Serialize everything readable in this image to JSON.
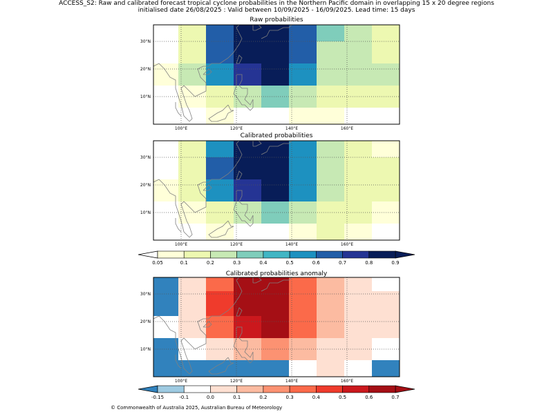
{
  "header": {
    "title_line1": "ACCESS_S2: Raw and calibrated forecast tropical cyclone probabilities in the Northern Pacific domain in overlapping 15 x 20 degree regions",
    "title_line2": "initialised date 26/08/2025 :  Valid between 10/09/2025 - 16/09/2025. Lead time: 15 days"
  },
  "footer": {
    "copyright": "© Commonwealth of Australia 2025, Australian Bureau of Meteorology"
  },
  "axes": {
    "lon_labels": [
      "100°E",
      "120°E",
      "140°E",
      "160°E"
    ],
    "lon_values": [
      100,
      120,
      140,
      160
    ],
    "lat_labels": [
      "30°N",
      "20°N",
      "10°N"
    ],
    "lat_values": [
      30,
      20,
      10
    ],
    "lon_range": [
      90,
      179
    ],
    "lat_range": [
      0,
      36
    ],
    "gridlines": "dotted",
    "coastlines": true
  },
  "colors": {
    "prob_colors": [
      "#ffffd9",
      "#edf8b1",
      "#c7e9b4",
      "#7fcdbb",
      "#41b6c4",
      "#1d91c0",
      "#225ea8",
      "#253494",
      "#081d58"
    ],
    "anom_colors": [
      "#3182bd",
      "#9ecae1",
      "#ffffff",
      "#fee0d2",
      "#fcbba1",
      "#fc9272",
      "#fb6a4a",
      "#ef3b2c",
      "#cb181d",
      "#a50f15"
    ],
    "coastline": "#808080"
  },
  "chart_data": [
    {
      "type": "heatmap",
      "title": "Raw probabilities",
      "cell_lon_edges": [
        90,
        99,
        109,
        119,
        129,
        139,
        149,
        159,
        169,
        179
      ],
      "cell_lat_edges": [
        36,
        30,
        22,
        14,
        6,
        0
      ],
      "values": [
        [
          null,
          0.1,
          0.6,
          0.9,
          0.8,
          0.6,
          0.3,
          0.2,
          0.1
        ],
        [
          null,
          0.1,
          0.6,
          0.9,
          0.9,
          0.6,
          0.2,
          0.2,
          0.1
        ],
        [
          0.05,
          0.2,
          0.5,
          0.7,
          0.8,
          0.5,
          0.2,
          0.2,
          0.2
        ],
        [
          null,
          0.05,
          0.1,
          0.2,
          0.3,
          0.2,
          0.1,
          0.1,
          0.1
        ],
        [
          null,
          null,
          0.05,
          null,
          null,
          0.05,
          0.05,
          null,
          null
        ]
      ]
    },
    {
      "type": "heatmap",
      "title": "Calibrated probabilities",
      "cell_lon_edges": [
        90,
        99,
        109,
        119,
        129,
        139,
        149,
        159,
        169,
        179
      ],
      "cell_lat_edges": [
        36,
        30,
        22,
        14,
        6,
        0
      ],
      "values": [
        [
          null,
          0.1,
          0.5,
          0.8,
          0.8,
          0.5,
          0.2,
          0.1,
          0.05
        ],
        [
          null,
          0.1,
          0.6,
          0.9,
          0.8,
          0.5,
          0.2,
          0.1,
          0.1
        ],
        [
          0.05,
          0.1,
          0.5,
          0.7,
          0.8,
          0.5,
          0.2,
          0.1,
          0.1
        ],
        [
          null,
          0.05,
          0.1,
          0.2,
          0.3,
          0.2,
          0.1,
          0.1,
          0.05
        ],
        [
          null,
          null,
          0.05,
          null,
          null,
          0.05,
          0.1,
          0.05,
          null
        ]
      ]
    },
    {
      "type": "heatmap",
      "title": "Calibrated probabilities anomaly",
      "cell_lon_edges": [
        90,
        99,
        109,
        119,
        129,
        139,
        149,
        159,
        169,
        179
      ],
      "cell_lat_edges": [
        36,
        31,
        22,
        14,
        6,
        0
      ],
      "values": [
        [
          -0.2,
          0.0,
          0.3,
          0.6,
          0.6,
          0.3,
          0.1,
          0.0,
          -0.1
        ],
        [
          -0.2,
          0.0,
          0.4,
          0.7,
          0.6,
          0.3,
          0.1,
          0.0,
          0.0
        ],
        [
          -0.1,
          0.0,
          0.3,
          0.5,
          0.6,
          0.3,
          0.1,
          0.0,
          0.0
        ],
        [
          -0.2,
          -0.1,
          0.0,
          0.1,
          0.2,
          0.1,
          0.0,
          0.0,
          -0.1
        ],
        [
          -0.2,
          -0.2,
          -0.2,
          -0.2,
          -0.2,
          -0.1,
          0.0,
          -0.1,
          -0.2
        ]
      ]
    }
  ],
  "colorbars": {
    "probability": {
      "bounds": [
        0.05,
        0.1,
        0.2,
        0.3,
        0.4,
        0.5,
        0.6,
        0.7,
        0.8,
        0.9
      ],
      "labels": [
        "0.05",
        "0.1",
        "0.2",
        "0.3",
        "0.4",
        "0.5",
        "0.6",
        "0.7",
        "0.8",
        "0.9"
      ],
      "extend": "both"
    },
    "anomaly": {
      "bounds": [
        -0.15,
        -0.1,
        0.0,
        0.1,
        0.2,
        0.3,
        0.4,
        0.5,
        0.6,
        0.7
      ],
      "labels": [
        "-0.15",
        "-0.1",
        "0.0",
        "0.1",
        "0.2",
        "0.3",
        "0.4",
        "0.5",
        "0.6",
        "0.7"
      ],
      "extend": "both"
    }
  }
}
